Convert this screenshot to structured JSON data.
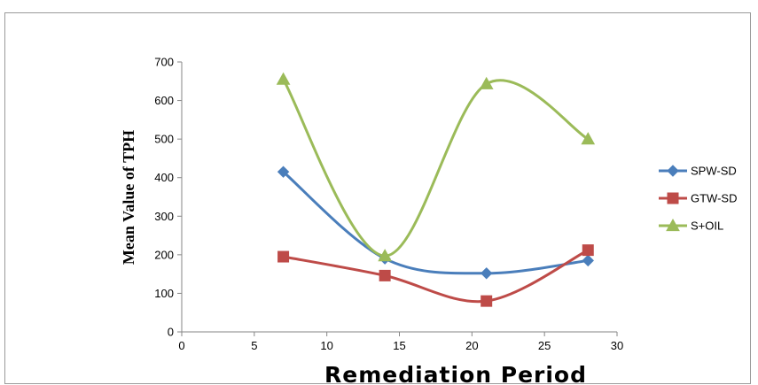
{
  "chart_data": {
    "type": "line",
    "title": "",
    "xlabel": "Remediation Period",
    "ylabel": "Mean  Value  of TPH",
    "xlim": [
      0,
      30
    ],
    "ylim": [
      0,
      700
    ],
    "xticks": [
      0,
      5,
      10,
      15,
      20,
      25,
      30
    ],
    "yticks": [
      0,
      100,
      200,
      300,
      400,
      500,
      600,
      700
    ],
    "grid": false,
    "smooth": true,
    "legend_position": "right",
    "series": [
      {
        "name": "SPW-SD",
        "color": "#4a7ebb",
        "marker": "diamond",
        "x": [
          7,
          14,
          21,
          28
        ],
        "y": [
          415,
          190,
          152,
          185
        ]
      },
      {
        "name": "GTW-SD",
        "color": "#be4b48",
        "marker": "square",
        "x": [
          7,
          14,
          21,
          28
        ],
        "y": [
          195,
          146,
          80,
          212
        ]
      },
      {
        "name": "S+OIL",
        "color": "#9bbb59",
        "marker": "triangle",
        "x": [
          7,
          14,
          21,
          28
        ],
        "y": [
          655,
          197,
          643,
          500
        ]
      }
    ]
  }
}
